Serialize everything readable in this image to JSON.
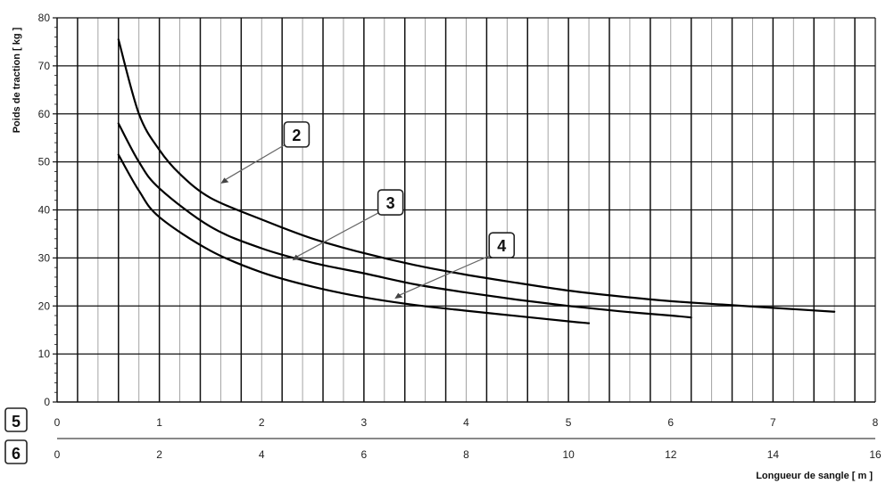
{
  "chart_data": {
    "type": "line",
    "ylabel": "Poids de traction [ kg ]",
    "xlabel": "Longueur de sangle [ m ]",
    "ylim": [
      0,
      80
    ],
    "yticks": [
      "0",
      "10",
      "20",
      "30",
      "40",
      "50",
      "60",
      "70",
      "80"
    ],
    "grid": true,
    "x_scales": [
      {
        "name": "5",
        "xlim": [
          0,
          8
        ],
        "ticks": [
          "0",
          "1",
          "2",
          "3",
          "4",
          "5",
          "6",
          "7",
          "8"
        ]
      },
      {
        "name": "6",
        "xlim": [
          0,
          16
        ],
        "ticks": [
          "0",
          "2",
          "4",
          "6",
          "8",
          "10",
          "12",
          "14",
          "16"
        ]
      }
    ],
    "series": [
      {
        "name": "2",
        "x": [
          0.6,
          0.8,
          1.0,
          1.2,
          1.5,
          2.0,
          2.5,
          3.0,
          3.5,
          4.0,
          4.5,
          5.0,
          5.5,
          6.0,
          6.5,
          7.0,
          7.6
        ],
        "y": [
          75.5,
          60,
          52.5,
          47.5,
          42.5,
          38,
          34,
          31,
          28.5,
          26.5,
          24.8,
          23.2,
          22,
          21,
          20.3,
          19.6,
          18.8
        ]
      },
      {
        "name": "3",
        "x": [
          0.6,
          0.8,
          1.0,
          1.5,
          2.0,
          2.5,
          3.0,
          3.5,
          4.0,
          4.5,
          5.0,
          5.5,
          6.0,
          6.2
        ],
        "y": [
          58,
          50,
          44.5,
          36.5,
          32,
          29,
          26.8,
          24.5,
          22.8,
          21.3,
          20,
          18.9,
          18,
          17.6
        ]
      },
      {
        "name": "4",
        "x": [
          0.6,
          0.8,
          1.0,
          1.5,
          2.0,
          2.5,
          3.0,
          3.5,
          4.0,
          4.5,
          5.0,
          5.2
        ],
        "y": [
          51.5,
          44,
          38.5,
          31.5,
          27,
          24,
          21.8,
          20.2,
          19,
          17.9,
          16.8,
          16.4
        ]
      }
    ],
    "annotations": [
      {
        "label": "2",
        "x": 1.6,
        "y": 45.5
      },
      {
        "label": "3",
        "x": 2.3,
        "y": 29.5
      },
      {
        "label": "4",
        "x": 3.3,
        "y": 21.5
      }
    ]
  }
}
